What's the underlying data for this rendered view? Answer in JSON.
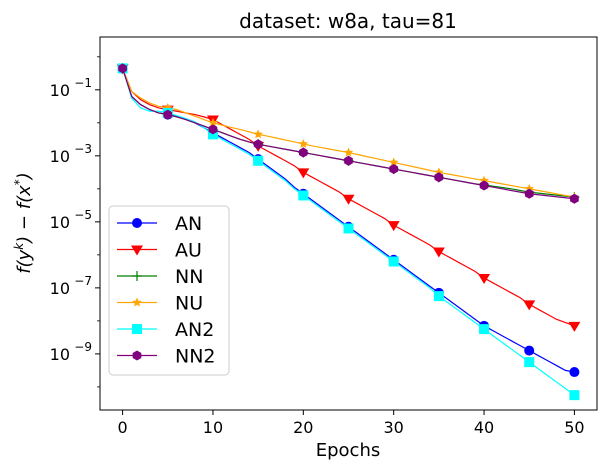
{
  "chart_data": {
    "type": "line",
    "title": "dataset: w8a, tau=81",
    "xlabel": "Epochs",
    "ylabel": "f(y^k) - f(x^*)",
    "yscale": "log",
    "xlim": [
      -2.5,
      52.5
    ],
    "ylim_log10": [
      -10.7,
      0.6
    ],
    "x_ticks": [
      0,
      10,
      20,
      30,
      40,
      50
    ],
    "x_tick_labels": [
      "0",
      "10",
      "20",
      "30",
      "40",
      "50"
    ],
    "y_ticks_log10": [
      -9,
      -7,
      -5,
      -3,
      -1
    ],
    "y_tick_labels": [
      {
        "base": "10",
        "exp": "−9"
      },
      {
        "base": "10",
        "exp": "−7"
      },
      {
        "base": "10",
        "exp": "−5"
      },
      {
        "base": "10",
        "exp": "−3"
      },
      {
        "base": "10",
        "exp": "−1"
      }
    ],
    "legend_position": "lower-left",
    "x": [
      0,
      1,
      2,
      3,
      4,
      5,
      6,
      7,
      8,
      9,
      10,
      11,
      12,
      13,
      14,
      15,
      16,
      17,
      18,
      19,
      20,
      21,
      22,
      23,
      24,
      25,
      26,
      27,
      28,
      29,
      30,
      31,
      32,
      33,
      34,
      35,
      36,
      37,
      38,
      39,
      40,
      41,
      42,
      43,
      44,
      45,
      46,
      47,
      48,
      49,
      50
    ],
    "series": [
      {
        "name": "AN",
        "color": "#0000ff",
        "marker": "circle",
        "log10_values": [
          -0.35,
          -1.2,
          -1.45,
          -1.6,
          -1.7,
          -1.75,
          -1.8,
          -1.9,
          -2.0,
          -2.15,
          -2.3,
          -2.45,
          -2.6,
          -2.75,
          -2.9,
          -3.1,
          -3.3,
          -3.5,
          -3.7,
          -3.95,
          -4.15,
          -4.35,
          -4.55,
          -4.75,
          -4.95,
          -5.15,
          -5.35,
          -5.55,
          -5.75,
          -5.95,
          -6.15,
          -6.35,
          -6.55,
          -6.75,
          -6.95,
          -7.15,
          -7.35,
          -7.55,
          -7.75,
          -7.95,
          -8.15,
          -8.3,
          -8.45,
          -8.6,
          -8.75,
          -8.9,
          -9.05,
          -9.2,
          -9.35,
          -9.5,
          -9.55
        ]
      },
      {
        "name": "AU",
        "color": "#ff0000",
        "marker": "triangle-down",
        "log10_values": [
          -0.35,
          -1.05,
          -1.3,
          -1.45,
          -1.55,
          -1.6,
          -1.65,
          -1.7,
          -1.75,
          -1.82,
          -1.9,
          -2.05,
          -2.2,
          -2.35,
          -2.5,
          -2.7,
          -2.85,
          -3.0,
          -3.15,
          -3.3,
          -3.5,
          -3.65,
          -3.8,
          -3.95,
          -4.1,
          -4.3,
          -4.45,
          -4.6,
          -4.75,
          -4.9,
          -5.1,
          -5.25,
          -5.4,
          -5.55,
          -5.7,
          -5.9,
          -6.05,
          -6.2,
          -6.35,
          -6.5,
          -6.7,
          -6.85,
          -7.0,
          -7.15,
          -7.3,
          -7.5,
          -7.65,
          -7.8,
          -7.95,
          -8.05,
          -8.15
        ]
      },
      {
        "name": "NN",
        "color": "#008000",
        "marker": "plus",
        "log10_values": [
          -0.35,
          -1.2,
          -1.45,
          -1.6,
          -1.7,
          -1.75,
          -1.82,
          -1.9,
          -2.0,
          -2.1,
          -2.2,
          -2.3,
          -2.4,
          -2.5,
          -2.58,
          -2.65,
          -2.7,
          -2.75,
          -2.8,
          -2.85,
          -2.9,
          -2.95,
          -3.0,
          -3.05,
          -3.1,
          -3.15,
          -3.2,
          -3.25,
          -3.3,
          -3.35,
          -3.4,
          -3.45,
          -3.5,
          -3.55,
          -3.6,
          -3.65,
          -3.7,
          -3.75,
          -3.8,
          -3.85,
          -3.88,
          -3.92,
          -3.96,
          -4.0,
          -4.05,
          -4.1,
          -4.13,
          -4.16,
          -4.19,
          -4.22,
          -4.25
        ]
      },
      {
        "name": "NU",
        "color": "#ffa500",
        "marker": "star",
        "log10_values": [
          -0.35,
          -1.05,
          -1.25,
          -1.4,
          -1.5,
          -1.55,
          -1.6,
          -1.7,
          -1.8,
          -1.9,
          -2.0,
          -2.07,
          -2.14,
          -2.2,
          -2.27,
          -2.35,
          -2.4,
          -2.46,
          -2.52,
          -2.58,
          -2.64,
          -2.7,
          -2.75,
          -2.8,
          -2.85,
          -2.9,
          -2.96,
          -3.02,
          -3.08,
          -3.14,
          -3.2,
          -3.26,
          -3.32,
          -3.38,
          -3.44,
          -3.5,
          -3.55,
          -3.6,
          -3.65,
          -3.7,
          -3.75,
          -3.8,
          -3.85,
          -3.9,
          -3.95,
          -4.0,
          -4.05,
          -4.1,
          -4.15,
          -4.2,
          -4.25
        ]
      },
      {
        "name": "AN2",
        "color": "#00ffff",
        "marker": "square",
        "log10_values": [
          -0.35,
          -1.25,
          -1.55,
          -1.65,
          -1.65,
          -1.7,
          -1.78,
          -1.87,
          -1.97,
          -2.15,
          -2.35,
          -2.5,
          -2.65,
          -2.8,
          -2.95,
          -3.15,
          -3.35,
          -3.55,
          -3.75,
          -4.0,
          -4.2,
          -4.4,
          -4.6,
          -4.8,
          -5.0,
          -5.2,
          -5.4,
          -5.6,
          -5.8,
          -6.0,
          -6.2,
          -6.4,
          -6.6,
          -6.8,
          -7.0,
          -7.25,
          -7.45,
          -7.65,
          -7.85,
          -8.05,
          -8.25,
          -8.45,
          -8.65,
          -8.85,
          -9.05,
          -9.25,
          -9.45,
          -9.65,
          -9.85,
          -10.05,
          -10.25
        ]
      },
      {
        "name": "NN2",
        "color": "#800080",
        "marker": "hexagon",
        "log10_values": [
          -0.35,
          -1.2,
          -1.45,
          -1.6,
          -1.7,
          -1.75,
          -1.82,
          -1.9,
          -2.0,
          -2.1,
          -2.2,
          -2.3,
          -2.4,
          -2.5,
          -2.58,
          -2.65,
          -2.7,
          -2.75,
          -2.8,
          -2.85,
          -2.9,
          -2.95,
          -3.0,
          -3.05,
          -3.1,
          -3.15,
          -3.2,
          -3.25,
          -3.3,
          -3.35,
          -3.4,
          -3.45,
          -3.5,
          -3.55,
          -3.6,
          -3.65,
          -3.7,
          -3.75,
          -3.8,
          -3.85,
          -3.9,
          -3.95,
          -4.0,
          -4.05,
          -4.1,
          -4.15,
          -4.18,
          -4.21,
          -4.24,
          -4.27,
          -4.3
        ]
      }
    ],
    "marker_every": 5
  }
}
